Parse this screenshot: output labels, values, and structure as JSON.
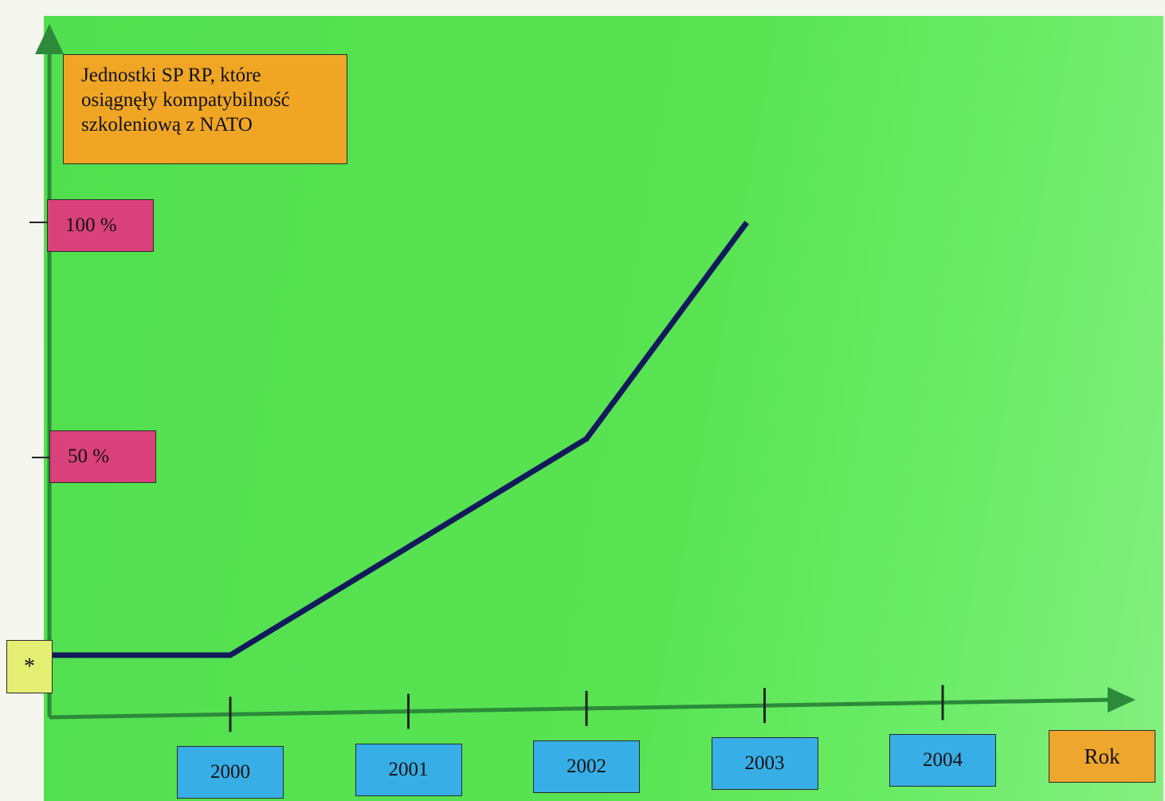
{
  "chart_data": {
    "type": "line",
    "title": "Jednostki SP RP, które osiągnęły kompatybilność szkoleniową z NATO",
    "xlabel": "Rok",
    "ylabel": "",
    "categories": [
      "2000",
      "2001",
      "2002",
      "2003",
      "2004"
    ],
    "y_tick_labels": [
      "*",
      "50 %",
      "100 %"
    ],
    "series": [
      {
        "x": [
          1999,
          2000,
          2001,
          2002,
          2002.9
        ],
        "y": [
          0,
          0,
          25,
          50,
          100
        ]
      }
    ],
    "xlim": [
      1999,
      2004.9
    ],
    "ylim": [
      0,
      100
    ],
    "grid": false,
    "colors": {
      "plot_bg": "#56e150",
      "line": "#131a5c",
      "axis": "#2c8a3a",
      "title_box": "#f0a624",
      "ytick_box": "#d9417b",
      "star_box": "#e3ee72",
      "xtick_box": "#38aee6",
      "xlabel_box": "#eea62e"
    }
  }
}
